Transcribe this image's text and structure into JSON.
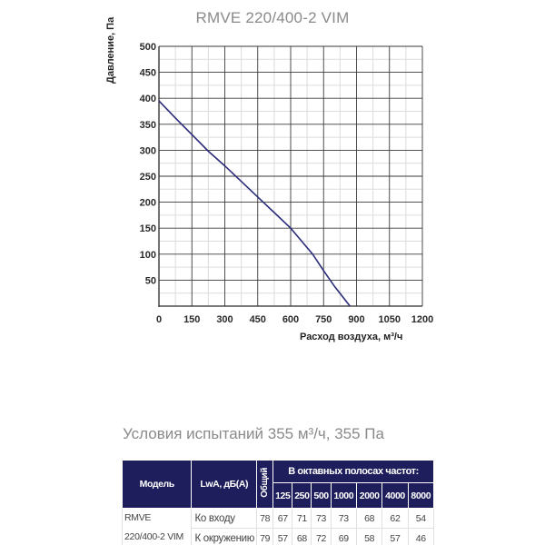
{
  "header": {
    "title": "RMVE 220/400-2 VIM"
  },
  "chart_data": {
    "type": "line",
    "title": "RMVE 220/400-2 VIM",
    "xlabel": "Расход воздуха, м³/ч",
    "ylabel": "Давление, Па",
    "xlim": [
      0,
      1200
    ],
    "ylim": [
      0,
      500
    ],
    "x_ticks": [
      "0",
      "150",
      "300",
      "450",
      "600",
      "750",
      "900",
      "1050",
      "1200"
    ],
    "y_ticks": [
      "50",
      "100",
      "150",
      "200",
      "250",
      "300",
      "350",
      "400",
      "450",
      "500"
    ],
    "grid": true,
    "legend": null,
    "series": [
      {
        "name": "RMVE 220/400-2 VIM",
        "color": "#2b2b7a",
        "x": [
          0,
          75,
          150,
          225,
          300,
          375,
          450,
          525,
          600,
          650,
          700,
          750,
          800,
          870
        ],
        "y": [
          395,
          362,
          330,
          298,
          270,
          240,
          210,
          180,
          150,
          125,
          100,
          68,
          38,
          0
        ]
      }
    ]
  },
  "conditions": {
    "text": "Условия испытаний 355 м³/ч, 355 Па"
  },
  "noise_table": {
    "headers": {
      "model": "Модель",
      "lwa": "LwA, дБ(A)",
      "total": "Общий",
      "bands": "В октавных полосах частот:"
    },
    "frequencies": [
      "125",
      "250",
      "500",
      "1000",
      "2000",
      "4000",
      "8000"
    ],
    "model_line1": "RMVE",
    "model_line2": "220/400-2 VIM",
    "rows": [
      {
        "label": "Ко входу",
        "total": "78",
        "values": [
          "67",
          "71",
          "73",
          "73",
          "68",
          "62",
          "54"
        ]
      },
      {
        "label": "К окружению",
        "total": "79",
        "values": [
          "57",
          "68",
          "72",
          "69",
          "58",
          "57",
          "46"
        ]
      }
    ]
  },
  "colors": {
    "header_bg": "#1e1e5c",
    "curve": "#2b2b7a",
    "grid_major": "#3a3a3a",
    "grid_minor": "#dcdcdc",
    "title_text": "#8a8a8c"
  }
}
